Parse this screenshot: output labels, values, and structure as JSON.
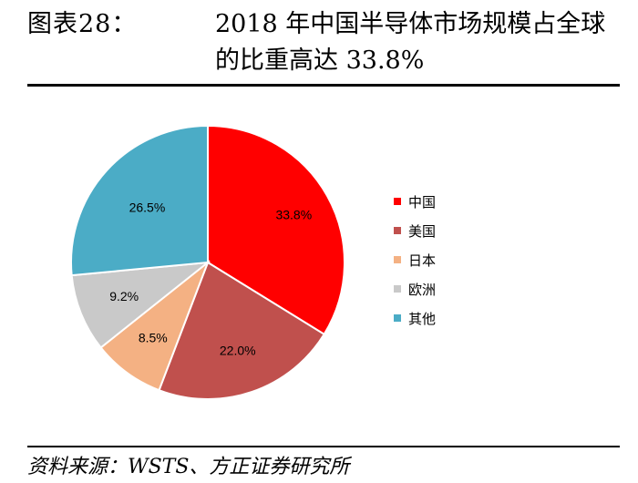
{
  "header": {
    "figure_label": "图表28：",
    "title_line1": "2018 年中国半导体市场规模占全球",
    "title_line2": "的比重高达 33.8%"
  },
  "source": "资料来源：WSTS、方正证券研究所",
  "chart_data": {
    "type": "pie",
    "categories": [
      "中国",
      "美国",
      "日本",
      "欧洲",
      "其他"
    ],
    "values": [
      33.8,
      22.0,
      8.5,
      9.2,
      26.5
    ],
    "labels": [
      "33.8%",
      "22.0%",
      "8.5%",
      "9.2%",
      "26.5%"
    ],
    "colors": [
      "#ff0000",
      "#c0504d",
      "#f4b183",
      "#c9c9c9",
      "#4bacc6"
    ],
    "legend_position": "right",
    "start_angle": "12 o'clock",
    "direction": "clockwise"
  }
}
